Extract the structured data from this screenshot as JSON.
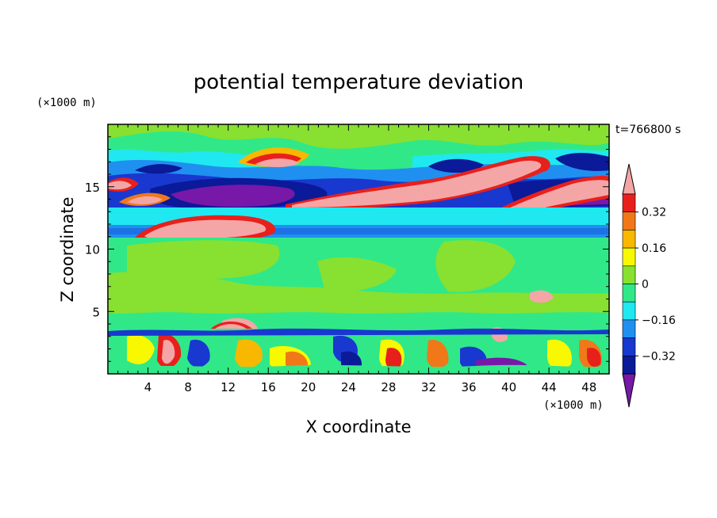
{
  "chart_data": {
    "type": "heatmap",
    "title": "potential temperature deviation",
    "xlabel": "X coordinate",
    "ylabel": "Z coordinate",
    "x_unit": "(×1000 m)",
    "y_unit": "(×1000 m)",
    "time_label": "t=766800 s",
    "xlim": [
      0,
      50
    ],
    "ylim": [
      0,
      20
    ],
    "x_ticks": [
      4,
      8,
      12,
      16,
      20,
      24,
      28,
      32,
      36,
      40,
      44,
      48
    ],
    "y_ticks": [
      5,
      10,
      15
    ],
    "colorbar": {
      "levels": [
        -0.4,
        -0.32,
        -0.24,
        -0.16,
        -0.08,
        0,
        0.08,
        0.16,
        0.24,
        0.32,
        0.4
      ],
      "tick_labels": [
        "0.32",
        "0.16",
        "0",
        "−0.16",
        "−0.32"
      ],
      "tick_values": [
        0.32,
        0.16,
        0,
        -0.16,
        -0.32
      ],
      "colors_top_to_bottom": [
        "#f4a6a6",
        "#e8201c",
        "#f07818",
        "#f8b800",
        "#f8f800",
        "#88e030",
        "#30e888",
        "#20e8f0",
        "#2090f0",
        "#1838d0",
        "#0a1a98",
        "#7818a8"
      ]
    },
    "bands": [
      {
        "z_range": [
          0,
          3.5
        ],
        "dominant": "mixed",
        "description_values": [
          -0.4,
          0.4
        ]
      },
      {
        "z_range": [
          3.5,
          11
        ],
        "dominant": 0.04
      },
      {
        "z_range": [
          11,
          12
        ],
        "dominant": -0.2
      },
      {
        "z_range": [
          12,
          16.5
        ],
        "dominant": -0.36
      },
      {
        "z_range": [
          16.5,
          20
        ],
        "dominant": 0.04
      }
    ]
  }
}
